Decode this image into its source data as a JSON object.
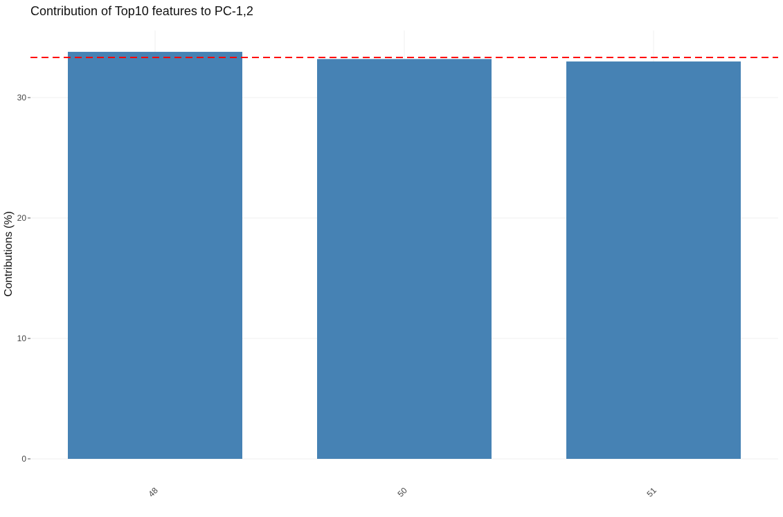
{
  "chart_data": {
    "type": "bar",
    "title": "Contribution of Top10 features to PC-1,2",
    "xlabel": "",
    "ylabel": "Contributions (%)",
    "categories": [
      "48",
      "50",
      "51"
    ],
    "values": [
      33.8,
      33.2,
      33.0
    ],
    "ylim": [
      0,
      35
    ],
    "yticks": [
      0,
      10,
      20,
      30
    ],
    "y_tick_labels": [
      "0",
      "10",
      "20",
      "30"
    ],
    "reference_line": 33.33,
    "grid": true,
    "legend": "none",
    "colors": {
      "bar": "#4682b4",
      "reference_line": "#ff0000",
      "grid": "#efefef"
    }
  }
}
